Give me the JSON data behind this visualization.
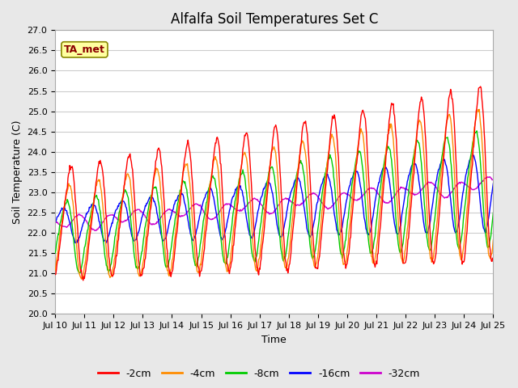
{
  "title": "Alfalfa Soil Temperatures Set C",
  "xlabel": "Time",
  "ylabel": "Soil Temperature (C)",
  "ylim": [
    20.0,
    27.0
  ],
  "yticks": [
    20.0,
    20.5,
    21.0,
    21.5,
    22.0,
    22.5,
    23.0,
    23.5,
    24.0,
    24.5,
    25.0,
    25.5,
    26.0,
    26.5,
    27.0
  ],
  "colors": {
    "-2cm": "#FF0000",
    "-4cm": "#FF8C00",
    "-8cm": "#00CC00",
    "-16cm": "#0000FF",
    "-32cm": "#CC00CC"
  },
  "legend_labels": [
    "-2cm",
    "-4cm",
    "-8cm",
    "-16cm",
    "-32cm"
  ],
  "annotation": "TA_met",
  "annotation_color": "#8B0000",
  "annotation_bg": "#FFFFA0",
  "fig_bg": "#E8E8E8",
  "plot_bg": "#FFFFFF",
  "grid_color": "#CCCCCC",
  "title_fontsize": 12,
  "axis_fontsize": 9,
  "tick_fontsize": 8,
  "n_points": 720,
  "x_start_day": 10,
  "x_end_day": 25,
  "xtick_days": [
    10,
    11,
    12,
    13,
    14,
    15,
    16,
    17,
    18,
    19,
    20,
    21,
    22,
    23,
    24,
    25
  ]
}
